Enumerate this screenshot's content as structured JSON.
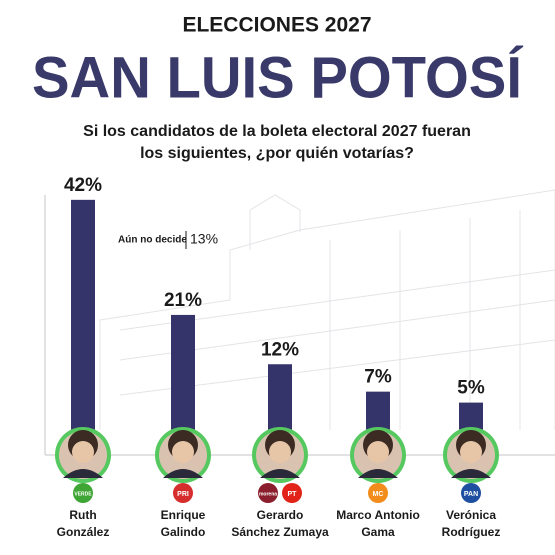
{
  "chart_data": {
    "type": "bar",
    "title": "ELECCIONES 2027",
    "subtitle": "SAN LUIS POTOSÍ",
    "question": [
      "Si los candidatos de la boleta electoral 2027 fueran",
      "los siguientes, ¿por quién votarías?"
    ],
    "categories": [
      [
        "Ruth",
        "González"
      ],
      [
        "Enrique",
        "Galindo"
      ],
      [
        "Gerardo",
        "Sánchez Zumaya"
      ],
      [
        "Marco Antonio",
        "Gama"
      ],
      [
        "Verónica",
        "Rodríguez"
      ]
    ],
    "parties": [
      [
        "VERDE"
      ],
      [
        "PRI"
      ],
      [
        "morena",
        "PT"
      ],
      [
        "MC"
      ],
      [
        "PAN"
      ]
    ],
    "values": [
      42,
      21,
      12,
      7,
      5
    ],
    "value_labels": [
      "42%",
      "21%",
      "12%",
      "7%",
      "5%"
    ],
    "color": "#34346a",
    "annotation": {
      "label": "Aún no decide",
      "value": 13,
      "value_label": "13%"
    }
  }
}
